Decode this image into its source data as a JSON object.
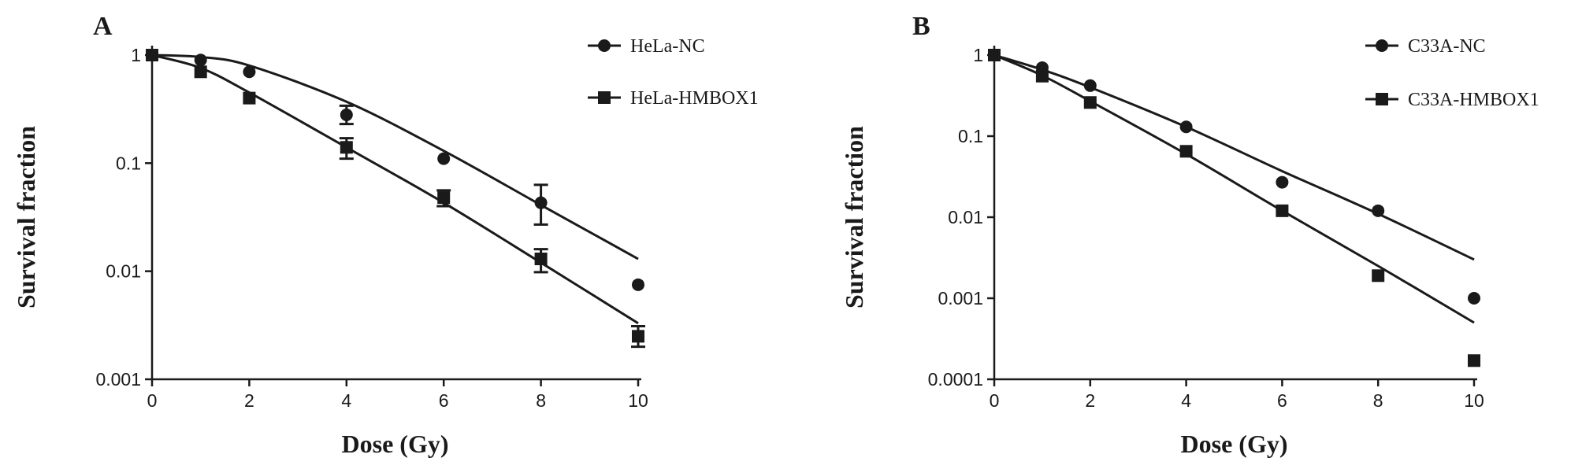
{
  "figure": {
    "panels": [
      {
        "letter": "A"
      },
      {
        "letter": "B"
      }
    ]
  },
  "chart_data": [
    {
      "type": "scatter",
      "panel": "A",
      "title": "",
      "xlabel": "Dose (Gy)",
      "ylabel": "Survival fraction",
      "xlim": [
        0,
        10
      ],
      "ylim": [
        0.001,
        1
      ],
      "yscale": "log",
      "x_ticks": [
        0,
        2,
        4,
        6,
        8,
        10
      ],
      "y_ticks": [
        1,
        0.1,
        0.01,
        0.001
      ],
      "x_tick_labels": [
        "0",
        "2",
        "4",
        "6",
        "8",
        "10"
      ],
      "y_tick_labels": [
        "1",
        "0.1",
        "0.01",
        "0.001"
      ],
      "grid": false,
      "legend_position": "top-right",
      "series": [
        {
          "name": "HeLa-NC",
          "marker": "circle",
          "x": [
            0,
            1,
            2,
            4,
            6,
            8,
            10
          ],
          "y": [
            1,
            0.9,
            0.7,
            0.28,
            0.11,
            0.043,
            0.0075
          ],
          "err_low": [
            null,
            null,
            null,
            0.23,
            null,
            0.027,
            null
          ],
          "err_high": [
            null,
            null,
            null,
            0.34,
            null,
            0.063,
            null
          ],
          "fit_y": [
            1,
            0.96,
            0.8,
            0.37,
            0.13,
            0.041,
            0.013
          ]
        },
        {
          "name": "HeLa-HMBOX1",
          "marker": "square",
          "x": [
            0,
            1,
            2,
            4,
            6,
            8,
            10
          ],
          "y": [
            1,
            0.7,
            0.4,
            0.14,
            0.048,
            0.013,
            0.0025
          ],
          "err_low": [
            null,
            null,
            null,
            0.11,
            0.04,
            0.0098,
            0.002
          ],
          "err_high": [
            null,
            null,
            null,
            0.17,
            0.056,
            0.016,
            0.0031
          ],
          "fit_y": [
            1,
            0.76,
            0.45,
            0.14,
            0.043,
            0.012,
            0.0033
          ]
        }
      ]
    },
    {
      "type": "scatter",
      "panel": "B",
      "title": "",
      "xlabel": "Dose (Gy)",
      "ylabel": "Survival fraction",
      "xlim": [
        0,
        10
      ],
      "ylim": [
        0.0001,
        1
      ],
      "yscale": "log",
      "x_ticks": [
        0,
        2,
        4,
        6,
        8,
        10
      ],
      "y_ticks": [
        1,
        0.1,
        0.01,
        0.001,
        0.0001
      ],
      "x_tick_labels": [
        "0",
        "2",
        "4",
        "6",
        "8",
        "10"
      ],
      "y_tick_labels": [
        "1",
        "0.1",
        "0.01",
        "0.001",
        "0.0001"
      ],
      "grid": false,
      "legend_position": "top-right",
      "series": [
        {
          "name": "C33A-NC",
          "marker": "circle",
          "x": [
            0,
            1,
            2,
            4,
            6,
            8,
            10
          ],
          "y": [
            1,
            0.7,
            0.42,
            0.13,
            0.027,
            0.012,
            0.001
          ],
          "err_low": [
            null,
            null,
            null,
            null,
            null,
            null,
            null
          ],
          "err_high": [
            null,
            null,
            null,
            null,
            null,
            null,
            null
          ],
          "fit_y": [
            1,
            0.66,
            0.4,
            0.13,
            0.037,
            0.011,
            0.003
          ]
        },
        {
          "name": "C33A-HMBOX1",
          "marker": "square",
          "x": [
            0,
            1,
            2,
            4,
            6,
            8,
            10
          ],
          "y": [
            1,
            0.55,
            0.26,
            0.065,
            0.012,
            0.0019,
            0.00017
          ],
          "err_low": [
            null,
            null,
            null,
            null,
            null,
            null,
            null
          ],
          "err_high": [
            null,
            null,
            null,
            null,
            null,
            null,
            null
          ],
          "fit_y": [
            1,
            0.56,
            0.27,
            0.06,
            0.012,
            0.0025,
            0.0005
          ]
        }
      ]
    }
  ]
}
